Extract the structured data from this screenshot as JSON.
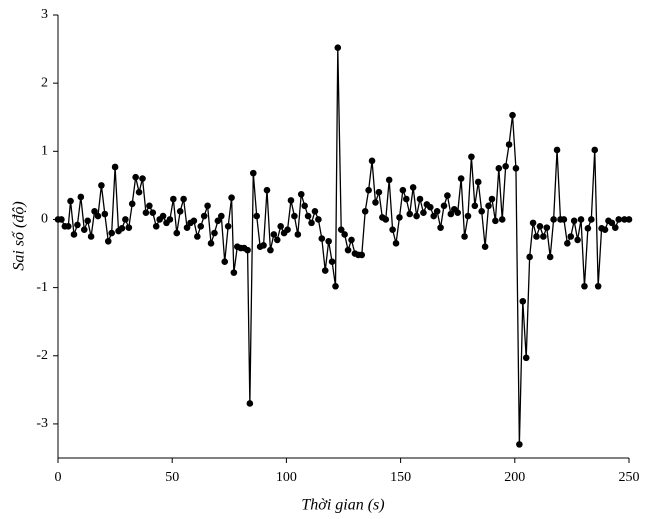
{
  "chart_data": {
    "type": "line",
    "x_label": "Thời gian (s)",
    "y_label": "Sai số (độ)",
    "xlim": [
      0,
      250
    ],
    "xticks": [
      0,
      50,
      100,
      150,
      200,
      250
    ],
    "ylim": [
      -3.5,
      3
    ],
    "yticks": [
      -3,
      -2,
      -1,
      0,
      1,
      2,
      3
    ],
    "grid": false,
    "x": [
      0,
      1.5,
      3,
      4.5,
      5.5,
      7,
      8.5,
      10,
      11.5,
      13,
      14.5,
      16,
      17.5,
      19,
      20.5,
      22,
      23.5,
      25,
      26.5,
      28,
      29.5,
      31,
      32.5,
      34,
      35.5,
      37,
      38.5,
      40,
      41.5,
      43,
      44.5,
      46,
      47.5,
      49,
      50.5,
      52,
      53.5,
      55,
      56.5,
      58,
      59.5,
      61,
      62.5,
      64,
      65.5,
      67,
      68.5,
      70,
      71.5,
      73,
      74.5,
      76,
      77,
      78.5,
      80,
      81.5,
      83,
      84,
      85.5,
      87,
      88.5,
      90,
      91.5,
      93,
      94.5,
      96,
      97.5,
      99,
      100.5,
      102,
      103.5,
      105,
      106.5,
      108,
      109.5,
      111,
      112.5,
      114,
      115.5,
      117,
      118.5,
      120,
      121.5,
      122.5,
      124,
      125.5,
      127,
      128.5,
      130,
      131.5,
      133,
      134.5,
      136,
      137.5,
      139,
      140.5,
      142,
      143.5,
      145,
      146.5,
      148,
      149.5,
      151,
      152.5,
      154,
      155.5,
      157,
      158.5,
      160,
      161.5,
      163,
      164.5,
      166,
      167.5,
      169,
      170.5,
      172,
      173.5,
      175,
      176.5,
      178,
      179.5,
      181,
      182.5,
      184,
      185.5,
      187,
      188.5,
      190,
      191.5,
      193,
      194.5,
      196,
      197.5,
      199,
      200.5,
      202,
      203.5,
      205,
      206.5,
      208,
      209.5,
      211,
      212.5,
      214,
      215.5,
      217,
      218.5,
      220,
      221.5,
      223,
      224.5,
      226,
      227.5,
      229,
      230.5,
      232,
      233.5,
      235,
      236.5,
      238,
      239.5,
      241,
      242.5,
      244,
      245.5,
      248,
      250
    ],
    "series": [
      {
        "color": "#000000",
        "values": [
          0,
          0,
          -0.1,
          -0.1,
          0.27,
          -0.22,
          -0.08,
          0.33,
          -0.15,
          -0.02,
          -0.25,
          0.12,
          0.05,
          0.5,
          0.08,
          -0.32,
          -0.2,
          0.77,
          -0.17,
          -0.13,
          0,
          -0.12,
          0.23,
          0.62,
          0.4,
          0.6,
          0.1,
          0.2,
          0.1,
          -0.1,
          0,
          0.05,
          -0.05,
          0,
          0.3,
          -0.2,
          0.12,
          0.3,
          -0.12,
          -0.05,
          -0.02,
          -0.25,
          -0.1,
          0.05,
          0.2,
          -0.35,
          -0.2,
          -0.02,
          0.05,
          -0.62,
          -0.1,
          0.32,
          -0.78,
          -0.4,
          -0.42,
          -0.42,
          -0.45,
          -2.7,
          0.68,
          0.05,
          -0.4,
          -0.38,
          0.43,
          -0.45,
          -0.22,
          -0.3,
          -0.1,
          -0.2,
          -0.15,
          0.28,
          0.05,
          -0.22,
          0.37,
          0.2,
          0.05,
          -0.05,
          0.12,
          0,
          -0.28,
          -0.75,
          -0.32,
          -0.62,
          -0.98,
          2.52,
          -0.15,
          -0.22,
          -0.45,
          -0.3,
          -0.5,
          -0.52,
          -0.52,
          0.12,
          0.43,
          0.86,
          0.25,
          0.4,
          0.03,
          0,
          0.58,
          -0.15,
          -0.35,
          0.03,
          0.43,
          0.3,
          0.08,
          0.47,
          0.05,
          0.3,
          0.1,
          0.22,
          0.18,
          0.05,
          0.12,
          -0.12,
          0.2,
          0.35,
          0.08,
          0.15,
          0.1,
          0.6,
          -0.25,
          0.05,
          0.92,
          0.2,
          0.55,
          0.12,
          -0.4,
          0.2,
          0.3,
          -0.02,
          0.75,
          0,
          0.78,
          1.1,
          1.53,
          0.75,
          -3.3,
          -1.2,
          -2.03,
          -0.55,
          -0.05,
          -0.25,
          -0.1,
          -0.25,
          -0.12,
          -0.55,
          0,
          1.02,
          0,
          0,
          -0.35,
          -0.25,
          -0.02,
          -0.3,
          0,
          -0.98,
          -0.13,
          0,
          1.02,
          -0.98,
          -0.13,
          -0.15,
          -0.02,
          -0.05,
          -0.12,
          0,
          0,
          0
        ]
      }
    ]
  }
}
